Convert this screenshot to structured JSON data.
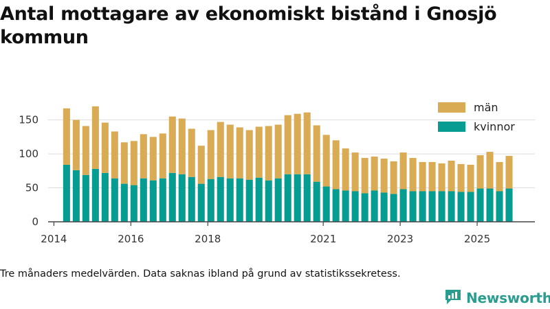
{
  "header": {
    "title": "Antal mottagare av ekonomiskt bistånd i Gnosjö kommun"
  },
  "colors": {
    "man": "#d9ab55",
    "kvinnor": "#079c91",
    "grid": "#dddddd",
    "axis": "#444444"
  },
  "chart_data": {
    "type": "bar",
    "stacked": true,
    "title": "Antal mottagare av ekonomiskt bistånd i Gnosjö kommun",
    "xlabel": "",
    "ylabel": "",
    "ylim": [
      0,
      185
    ],
    "yticks": [
      0,
      50,
      100,
      150
    ],
    "xlim": [
      2013.85,
      2026.5
    ],
    "xticks": [
      {
        "value": 2014,
        "label": "2014"
      },
      {
        "value": 2016,
        "label": "2016"
      },
      {
        "value": 2018,
        "label": "2018"
      },
      {
        "value": 2021,
        "label": "2021"
      },
      {
        "value": 2023,
        "label": "2023"
      },
      {
        "value": 2025,
        "label": "2025"
      }
    ],
    "grid": true,
    "legend_position": "top-right",
    "x": [
      2014.33,
      2014.58,
      2014.83,
      2015.08,
      2015.33,
      2015.58,
      2015.83,
      2016.08,
      2016.33,
      2016.58,
      2016.83,
      2017.08,
      2017.33,
      2017.58,
      2017.83,
      2018.08,
      2018.33,
      2018.58,
      2018.83,
      2019.08,
      2019.33,
      2019.58,
      2019.83,
      2020.08,
      2020.33,
      2020.58,
      2020.83,
      2021.08,
      2021.33,
      2021.58,
      2021.83,
      2022.08,
      2022.33,
      2022.58,
      2022.83,
      2023.08,
      2023.33,
      2023.58,
      2023.83,
      2024.08,
      2024.33,
      2024.58,
      2024.83,
      2025.08,
      2025.33,
      2025.58,
      2025.83
    ],
    "series": [
      {
        "name": "kvinnor",
        "color": "#079c91",
        "values": [
          84,
          76,
          69,
          78,
          72,
          64,
          56,
          54,
          64,
          61,
          64,
          72,
          70,
          66,
          56,
          63,
          66,
          64,
          64,
          62,
          65,
          61,
          64,
          70,
          70,
          70,
          59,
          52,
          48,
          46,
          45,
          42,
          46,
          43,
          41,
          48,
          45,
          45,
          45,
          45,
          45,
          44,
          44,
          49,
          49,
          45,
          49
        ]
      },
      {
        "name": "män",
        "color": "#d9ab55",
        "values": [
          83,
          74,
          72,
          92,
          74,
          69,
          61,
          65,
          65,
          64,
          66,
          83,
          82,
          71,
          56,
          72,
          81,
          79,
          75,
          73,
          75,
          80,
          79,
          87,
          89,
          91,
          83,
          76,
          72,
          62,
          57,
          52,
          50,
          50,
          48,
          54,
          49,
          43,
          43,
          41,
          45,
          41,
          40,
          49,
          54,
          43,
          48
        ]
      }
    ]
  },
  "footnote": "Tre månaders medelvärden. Data saknas ibland på grund av statistikssekretess.",
  "brand": {
    "name": "Newsworthy",
    "icon": "newsworthy-logo-icon"
  }
}
